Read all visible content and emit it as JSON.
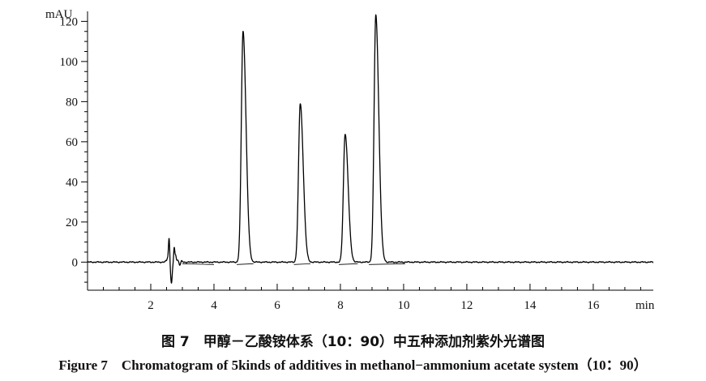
{
  "chart_data": {
    "type": "line",
    "title": "",
    "xlabel": "min",
    "ylabel": "mAU",
    "xlim": [
      0,
      17.9
    ],
    "ylim": [
      -14,
      125
    ],
    "x_ticks": [
      2,
      4,
      6,
      8,
      10,
      12,
      14,
      16
    ],
    "y_ticks": [
      0,
      20,
      40,
      60,
      80,
      100,
      120
    ],
    "grid": false,
    "legend": "none",
    "line_color": "#000000",
    "series": [
      {
        "peaks": [
          {
            "rt": 4.92,
            "height": 115
          },
          {
            "rt": 6.73,
            "height": 79
          },
          {
            "rt": 8.15,
            "height": 64
          },
          {
            "rt": 9.12,
            "height": 123
          }
        ],
        "solvent_disturbance": {
          "start": 2.4,
          "end": 3.0,
          "max": 12,
          "min": -9
        }
      }
    ]
  },
  "caption": {
    "cn": "图 7　甲醇－乙酸铵体系（10：90）中五种添加剂紫外光谱图",
    "en": "Figure 7　Chromatogram of 5kinds of additives in methanol−ammonium acetate system（10：90）"
  }
}
